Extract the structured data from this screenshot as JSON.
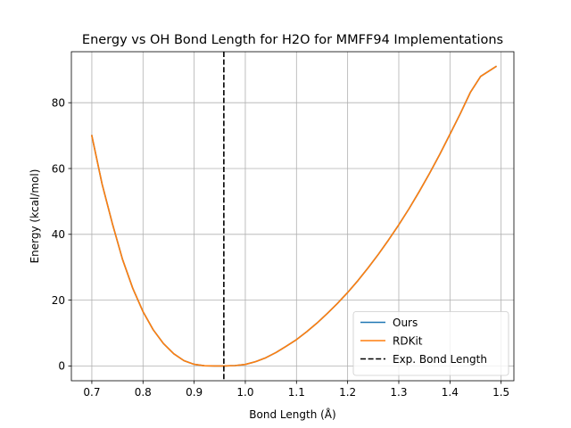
{
  "chart_data": {
    "type": "line",
    "title": "Energy vs OH Bond Length for H2O for MMFF94 Implementations",
    "xlabel": "Bond Length (Å)",
    "ylabel": "Energy (kcal/mol)",
    "xlim": [
      0.66,
      1.525
    ],
    "ylim": [
      -4.5,
      95.5
    ],
    "xticks": [
      0.7,
      0.8,
      0.9,
      1.0,
      1.1,
      1.2,
      1.3,
      1.4,
      1.5
    ],
    "xtick_labels": [
      "0.7",
      "0.8",
      "0.9",
      "1.0",
      "1.1",
      "1.2",
      "1.3",
      "1.4",
      "1.5"
    ],
    "yticks": [
      0,
      20,
      40,
      60,
      80
    ],
    "ytick_labels": [
      "0",
      "20",
      "40",
      "60",
      "80"
    ],
    "grid": true,
    "legend_position": "lower-right",
    "x": [
      0.7,
      0.72,
      0.74,
      0.76,
      0.78,
      0.8,
      0.82,
      0.84,
      0.86,
      0.88,
      0.9,
      0.92,
      0.94,
      0.96,
      0.98,
      1.0,
      1.02,
      1.04,
      1.06,
      1.08,
      1.1,
      1.12,
      1.14,
      1.16,
      1.18,
      1.2,
      1.22,
      1.24,
      1.26,
      1.28,
      1.3,
      1.32,
      1.34,
      1.36,
      1.38,
      1.4,
      1.42,
      1.44,
      1.46,
      1.49
    ],
    "series": [
      {
        "name": "Ours",
        "color": "#1f77b4",
        "style": "solid",
        "values": [
          70.0,
          55.3,
          43.3,
          32.4,
          23.6,
          16.5,
          11.0,
          6.8,
          3.7,
          1.6,
          0.5,
          0.05,
          0.0,
          0.0,
          0.12,
          0.45,
          1.3,
          2.5,
          4.1,
          6.0,
          8.0,
          10.4,
          13.0,
          15.9,
          19.0,
          22.3,
          25.9,
          29.8,
          33.9,
          38.3,
          42.9,
          47.8,
          53.0,
          58.5,
          64.3,
          70.4,
          76.6,
          83.2,
          88.0,
          91.0
        ]
      },
      {
        "name": "RDKit",
        "color": "#ff7f0e",
        "style": "solid",
        "values": [
          70.0,
          55.3,
          43.3,
          32.4,
          23.6,
          16.5,
          11.0,
          6.8,
          3.7,
          1.6,
          0.5,
          0.05,
          0.0,
          0.0,
          0.12,
          0.45,
          1.3,
          2.5,
          4.1,
          6.0,
          8.0,
          10.4,
          13.0,
          15.9,
          19.0,
          22.3,
          25.9,
          29.8,
          33.9,
          38.3,
          42.9,
          47.8,
          53.0,
          58.5,
          64.3,
          70.4,
          76.6,
          83.2,
          88.0,
          91.0
        ]
      }
    ],
    "vlines": [
      {
        "name": "Exp. Bond Length",
        "x": 0.958,
        "color": "#000000",
        "style": "dashed"
      }
    ]
  }
}
